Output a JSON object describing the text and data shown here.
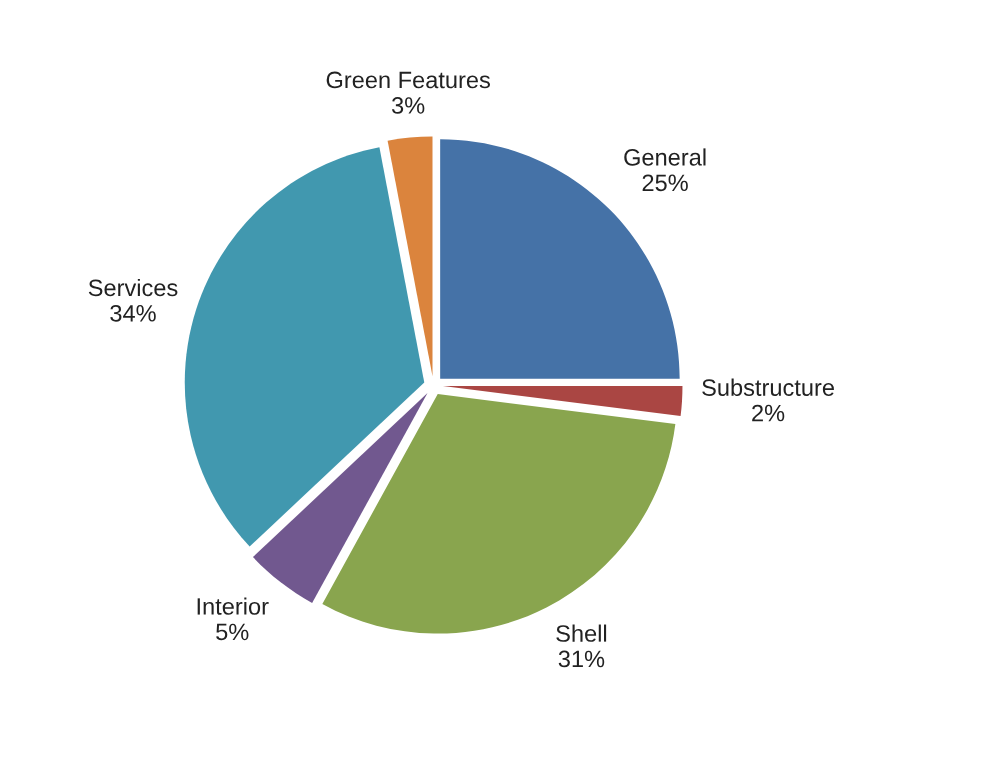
{
  "chart_data": {
    "type": "pie",
    "categories": [
      "General",
      "Substructure",
      "Shell",
      "Interior",
      "Services",
      "Green Features"
    ],
    "values": [
      25,
      2,
      31,
      5,
      34,
      3
    ],
    "value_labels": [
      "25%",
      "2%",
      "31%",
      "5%",
      "34%",
      "3%"
    ],
    "colors": [
      "#4572a7",
      "#aa4643",
      "#89a54e",
      "#71588f",
      "#4198af",
      "#db843d"
    ]
  }
}
